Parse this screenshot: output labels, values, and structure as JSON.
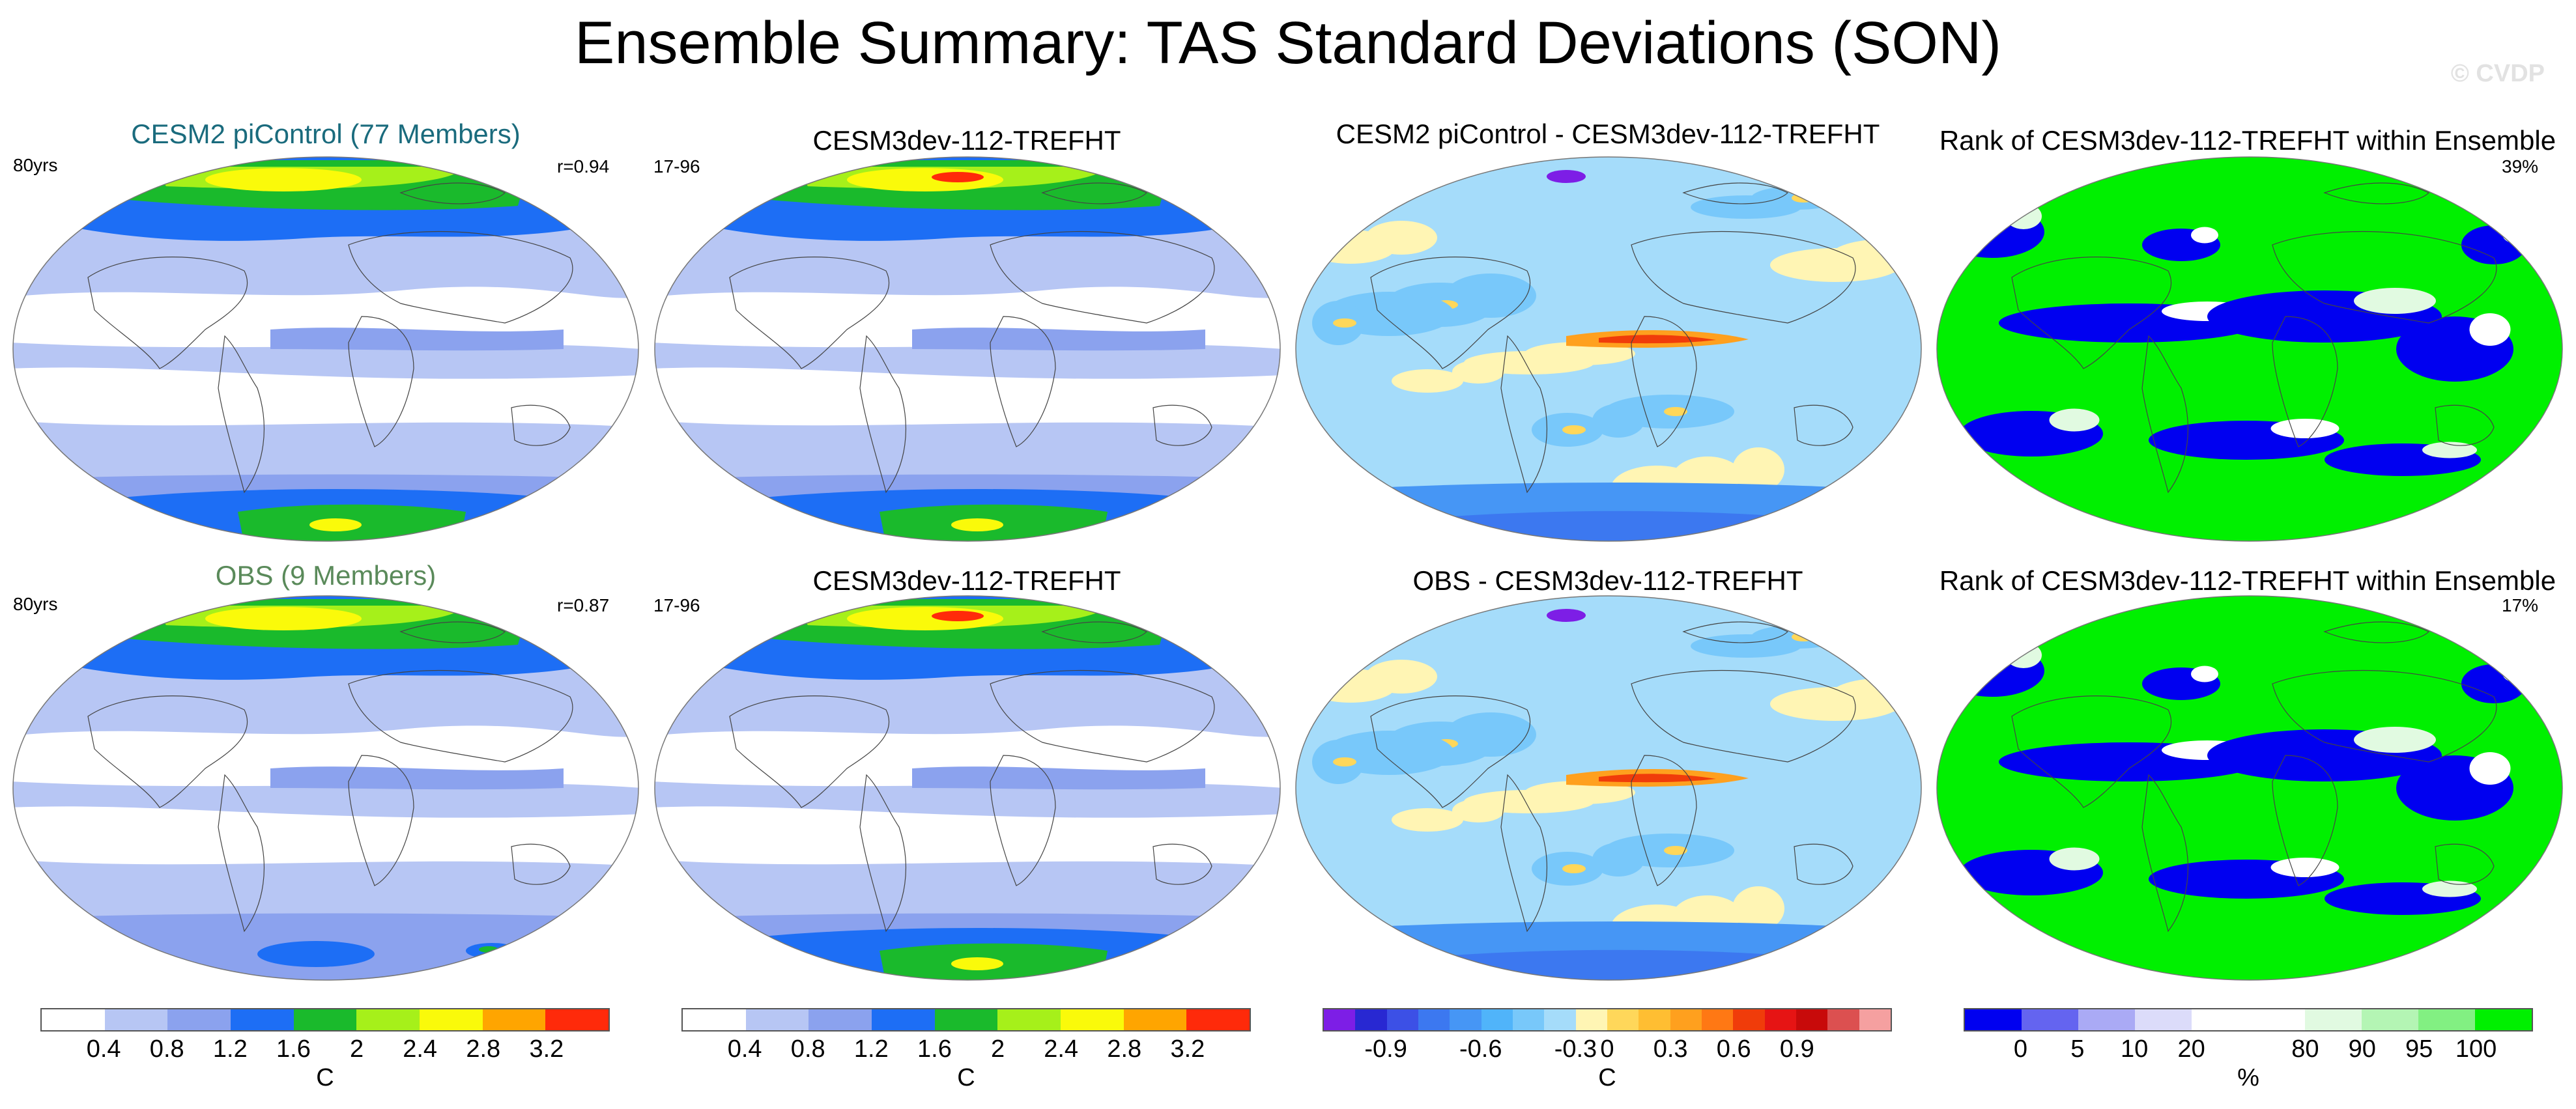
{
  "title": "Ensemble Summary: TAS Standard Deviations (SON)",
  "copyright": "© CVDP",
  "rows": [
    {
      "panels": [
        {
          "title": "CESM2 piControl (77 Members)",
          "left": "80yrs",
          "right": "r=0.94",
          "type": "stddev-ens"
        },
        {
          "title": "CESM3dev-112-TREFHT",
          "left": "17-96",
          "right": "",
          "type": "stddev-model"
        },
        {
          "title": "CESM2 piControl - CESM3dev-112-TREFHT",
          "left": "",
          "right": "",
          "type": "diff"
        },
        {
          "title": "Rank of CESM3dev-112-TREFHT within Ensemble",
          "left": "",
          "right": "39%",
          "type": "rank"
        }
      ]
    },
    {
      "panels": [
        {
          "title": "OBS (9 Members)",
          "left": "80yrs",
          "right": "r=0.87",
          "type": "stddev-obs"
        },
        {
          "title": "CESM3dev-112-TREFHT",
          "left": "17-96",
          "right": "",
          "type": "stddev-model"
        },
        {
          "title": "OBS - CESM3dev-112-TREFHT",
          "left": "",
          "right": "",
          "type": "diff"
        },
        {
          "title": "Rank of CESM3dev-112-TREFHT within Ensemble",
          "left": "",
          "right": "17%",
          "type": "rank"
        }
      ]
    }
  ],
  "colorbars": [
    {
      "unit": "C",
      "colors": [
        "#ffffff",
        "#b7c6f4",
        "#8ba2ee",
        "#1d6ef5",
        "#1aba2c",
        "#a6f01a",
        "#fafa0a",
        "#ffa500",
        "#ff2a0a"
      ],
      "ticks": [
        "0.4",
        "0.8",
        "1.2",
        "1.6",
        "2",
        "2.4",
        "2.8",
        "3.2"
      ]
    },
    {
      "unit": "C",
      "colors": [
        "#ffffff",
        "#b7c6f4",
        "#8ba2ee",
        "#1d6ef5",
        "#1aba2c",
        "#a6f01a",
        "#fafa0a",
        "#ffa500",
        "#ff2a0a"
      ],
      "ticks": [
        "0.4",
        "0.8",
        "1.2",
        "1.6",
        "2",
        "2.4",
        "2.8",
        "3.2"
      ]
    },
    {
      "unit": "C",
      "colors": [
        "#7d1ee6",
        "#2828d2",
        "#3c50e6",
        "#3c78f0",
        "#4696f5",
        "#50b4fa",
        "#78c8fa",
        "#a5dcfa",
        "#fff5b4",
        "#ffd75a",
        "#ffbe32",
        "#ffa01e",
        "#ff7814",
        "#f03c0a",
        "#e61414",
        "#c80a0a",
        "#dc5050",
        "#f5a0a0"
      ],
      "ticks": [
        "-0.9",
        "-0.6",
        "-0.3",
        "0",
        "0.3",
        "0.6",
        "0.9"
      ]
    },
    {
      "unit": "%",
      "colors": [
        "#0000f0",
        "#6464f0",
        "#aaaaf5",
        "#dcdcfa",
        "#ffffff",
        "#ffffff",
        "#e1fae1",
        "#b4f5b4",
        "#82f082",
        "#00f000"
      ],
      "ticks": [
        "0",
        "5",
        "10",
        "20",
        "80",
        "90",
        "95",
        "100"
      ]
    }
  ]
}
